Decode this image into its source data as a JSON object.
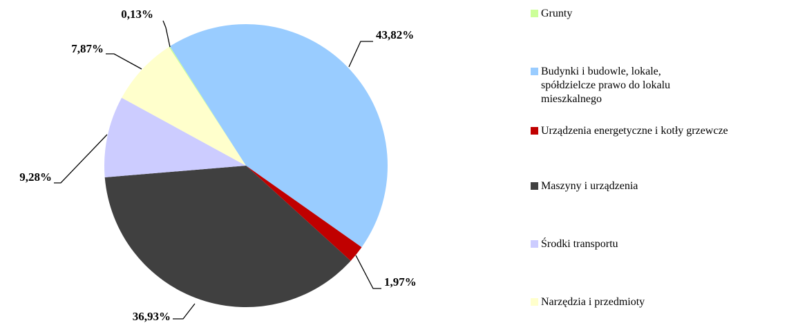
{
  "chart_data": {
    "type": "pie",
    "categories": [
      "Grunty",
      "Budynki i budowle, lokale, spółdzielcze prawo do lokalu mieszkalnego",
      "Urządzenia energetyczne i kotły grzewcze",
      "Maszyny i urządzenia",
      "Środki transportu",
      "Narzędzia i przedmioty"
    ],
    "values": [
      0.13,
      43.82,
      1.97,
      36.93,
      9.28,
      7.87
    ],
    "value_labels": [
      "0,13%",
      "43,82%",
      "1,97%",
      "36,93%",
      "9,28%",
      "7,87%"
    ],
    "colors": [
      "#ccff99",
      "#99ccff",
      "#c00000",
      "#404040",
      "#ccccff",
      "#ffffcc"
    ],
    "legend": "right"
  }
}
